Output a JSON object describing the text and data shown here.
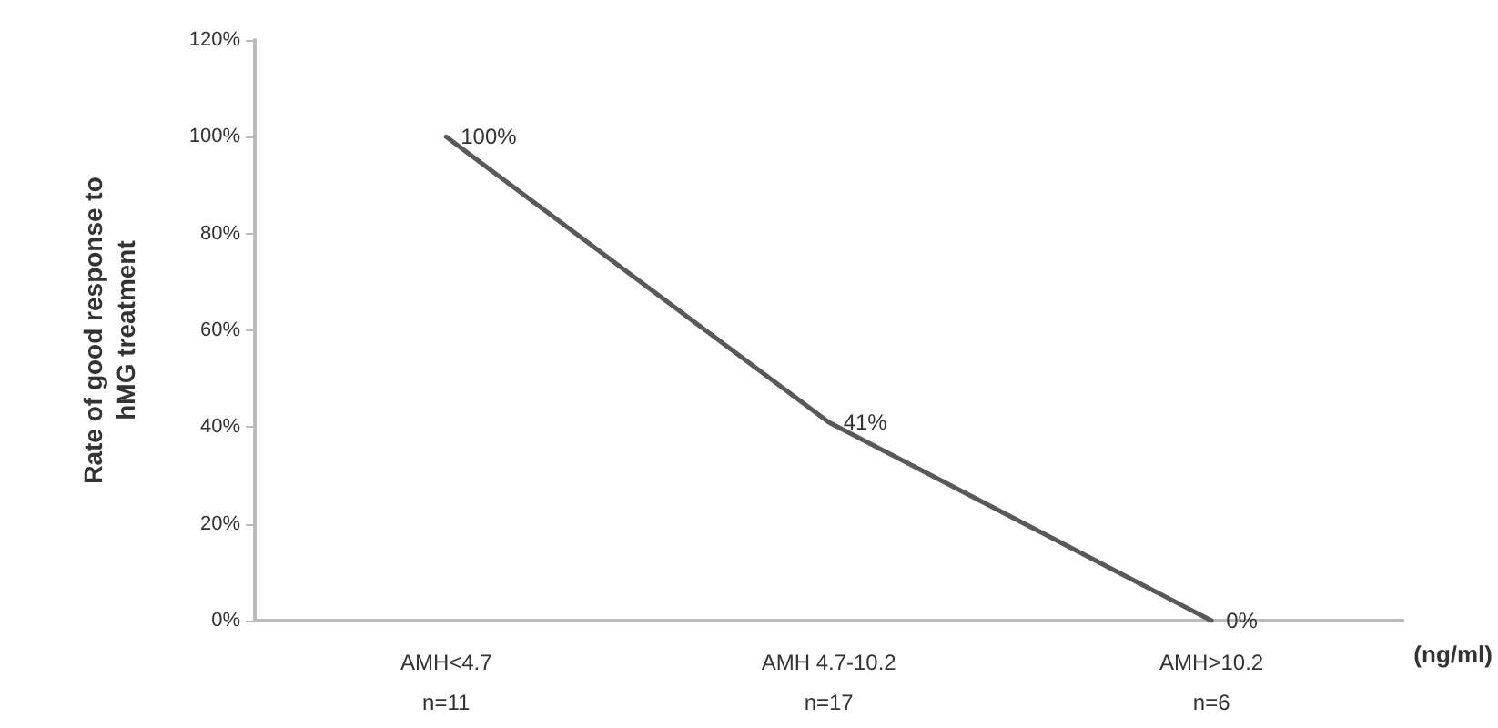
{
  "chart_data": {
    "type": "line",
    "ylabel": "Rate of good response to\nhMG treatment",
    "xlabel": "(ng/ml)",
    "categories": [
      "AMH<4.7\nn=11",
      "AMH 4.7-10.2\nn=17",
      "AMH>10.2\nn=6"
    ],
    "series": [
      {
        "color": "#595959",
        "values": [
          100,
          41,
          0
        ],
        "value_labels": [
          "100%",
          "41%",
          "0%"
        ]
      }
    ],
    "ylim": [
      0,
      120
    ],
    "yticks": [
      {
        "value": 0,
        "label": "0%"
      },
      {
        "value": 20,
        "label": "20%"
      },
      {
        "value": 40,
        "label": "40%"
      },
      {
        "value": 60,
        "label": "60%"
      },
      {
        "value": 80,
        "label": "80%"
      },
      {
        "value": 100,
        "label": "100%"
      },
      {
        "value": 120,
        "label": "120%"
      }
    ],
    "grid": false,
    "marker": "none",
    "line_style": "solid"
  }
}
